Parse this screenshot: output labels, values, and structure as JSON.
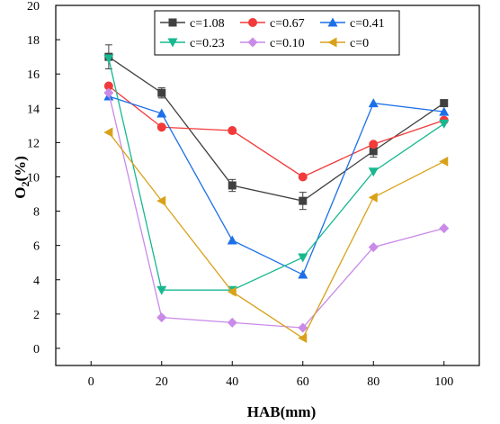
{
  "chart_data": {
    "type": "line",
    "xlabel": "HAB(mm)",
    "ylabel_main": "O",
    "ylabel_sub": "2",
    "ylabel_rest": "(%)",
    "xlim": [
      -10,
      110
    ],
    "ylim": [
      -1,
      20
    ],
    "x_ticks": [
      0,
      20,
      40,
      60,
      80,
      100
    ],
    "y_ticks": [
      0,
      2,
      4,
      6,
      8,
      10,
      12,
      14,
      16,
      18,
      20
    ],
    "grid": false,
    "legend_position": "top-center",
    "x": [
      5,
      20,
      40,
      60,
      80,
      100
    ],
    "series": [
      {
        "name": "c=1.08",
        "color": "#404040",
        "marker": "square",
        "values": [
          17.0,
          14.9,
          9.5,
          8.6,
          11.5,
          14.3
        ],
        "errors": [
          0.7,
          0.3,
          0.35,
          0.5,
          0.35,
          0.0
        ]
      },
      {
        "name": "c=0.67",
        "color": "#f23a3a",
        "marker": "circle",
        "values": [
          15.3,
          12.9,
          12.7,
          10.0,
          11.9,
          13.3
        ]
      },
      {
        "name": "c=0.41",
        "color": "#1c6fe8",
        "marker": "triangle-up",
        "values": [
          14.7,
          13.7,
          6.3,
          4.3,
          14.3,
          13.8
        ]
      },
      {
        "name": "c=0.23",
        "color": "#17b890",
        "marker": "triangle-down",
        "values": [
          16.9,
          3.4,
          3.4,
          5.3,
          10.3,
          13.1
        ]
      },
      {
        "name": "c=0.10",
        "color": "#c98ae8",
        "marker": "diamond",
        "values": [
          14.9,
          1.8,
          1.5,
          1.2,
          5.9,
          7.0
        ]
      },
      {
        "name": "c=0",
        "color": "#d9a11a",
        "marker": "triangle-left",
        "values": [
          12.6,
          8.6,
          3.3,
          0.6,
          8.8,
          10.9
        ]
      }
    ]
  }
}
